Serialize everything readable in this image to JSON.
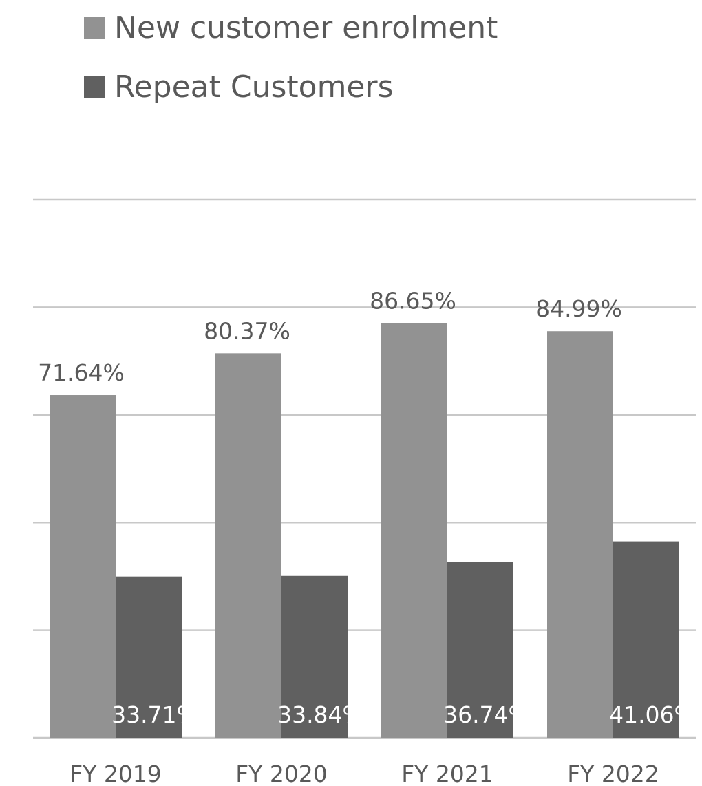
{
  "chart_data": {
    "type": "bar",
    "categories": [
      "FY 2019",
      "FY 2020",
      "FY 2021",
      "FY 2022"
    ],
    "series": [
      {
        "name": "New customer enrolment",
        "values": [
          71.64,
          80.37,
          86.65,
          84.99
        ],
        "labels": [
          "71.64%",
          "80.37%",
          "86.65%",
          "84.99%"
        ],
        "color": "#929292",
        "label_position": "outside-end",
        "label_color": "#595959"
      },
      {
        "name": "Repeat Customers",
        "values": [
          33.71,
          33.84,
          36.74,
          41.06
        ],
        "labels": [
          "33.71%",
          "33.84%",
          "36.74%",
          "41.06%"
        ],
        "color": "#606060",
        "label_position": "inside-base",
        "label_color": "#ffffff"
      }
    ],
    "ylim": [
      0,
      112.5
    ],
    "grid": true,
    "legend_position": "top-left",
    "xlabel": "",
    "ylabel": "",
    "title": ""
  }
}
